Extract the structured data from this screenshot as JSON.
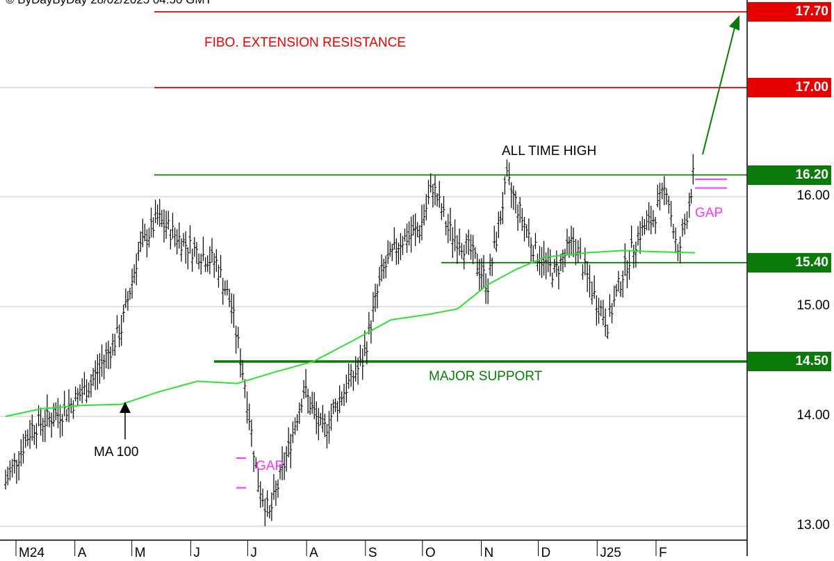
{
  "copyright": "© ByDayByDay 28/02/2025 04:50 GMT",
  "chart_data": {
    "type": "ohlc",
    "title": "",
    "xlabel": "",
    "ylabel": "",
    "ylim": [
      12.95,
      17.8
    ],
    "x_ticks": [
      "M24",
      "A",
      "M",
      "J",
      "J",
      "A",
      "S",
      "O",
      "N",
      "D",
      "J25",
      "F"
    ],
    "y_ticks": [
      "13.00",
      "14.00",
      "15.00",
      "16.00"
    ],
    "price_levels": [
      {
        "value": 17.7,
        "label": "17.70",
        "color": "#e60000"
      },
      {
        "value": 17.0,
        "label": "17.00",
        "color": "#e60000"
      },
      {
        "value": 16.2,
        "label": "16.20",
        "color": "#0a7a0a"
      },
      {
        "value": 15.4,
        "label": "15.40",
        "color": "#0a7a0a"
      },
      {
        "value": 14.5,
        "label": "14.50",
        "color": "#0a7a0a"
      }
    ],
    "series": [
      {
        "name": "MA 100",
        "color": "#33dd33",
        "points": [
          {
            "x": "2024-03-01",
            "y": 14.0
          },
          {
            "x": "2024-03-20",
            "y": 14.07
          },
          {
            "x": "2024-04-10",
            "y": 14.1
          },
          {
            "x": "2024-05-01",
            "y": 14.11
          },
          {
            "x": "2024-05-20",
            "y": 14.22
          },
          {
            "x": "2024-06-10",
            "y": 14.32
          },
          {
            "x": "2024-07-01",
            "y": 14.3
          },
          {
            "x": "2024-07-20",
            "y": 14.4
          },
          {
            "x": "2024-08-10",
            "y": 14.5
          },
          {
            "x": "2024-09-01",
            "y": 14.7
          },
          {
            "x": "2024-09-20",
            "y": 14.88
          },
          {
            "x": "2024-10-10",
            "y": 14.93
          },
          {
            "x": "2024-10-25",
            "y": 14.98
          },
          {
            "x": "2024-11-10",
            "y": 15.2
          },
          {
            "x": "2024-11-25",
            "y": 15.34
          },
          {
            "x": "2024-12-10",
            "y": 15.45
          },
          {
            "x": "2025-01-01",
            "y": 15.49
          },
          {
            "x": "2025-01-20",
            "y": 15.51
          },
          {
            "x": "2025-02-05",
            "y": 15.5
          },
          {
            "x": "2025-02-27",
            "y": 15.49
          }
        ]
      },
      {
        "name": "Price",
        "color": "#000000",
        "points": [
          {
            "x": "2024-03-01",
            "y": 13.4
          },
          {
            "x": "2024-03-15",
            "y": 13.9
          },
          {
            "x": "2024-04-01",
            "y": 14.05
          },
          {
            "x": "2024-04-15",
            "y": 14.3
          },
          {
            "x": "2024-05-01",
            "y": 14.8
          },
          {
            "x": "2024-05-10",
            "y": 15.5
          },
          {
            "x": "2024-05-20",
            "y": 15.8
          },
          {
            "x": "2024-06-05",
            "y": 15.55
          },
          {
            "x": "2024-06-20",
            "y": 15.4
          },
          {
            "x": "2024-06-28",
            "y": 15.0
          },
          {
            "x": "2024-07-05",
            "y": 14.3
          },
          {
            "x": "2024-07-12",
            "y": 13.4
          },
          {
            "x": "2024-07-18",
            "y": 13.1
          },
          {
            "x": "2024-07-28",
            "y": 13.7
          },
          {
            "x": "2024-08-05",
            "y": 14.25
          },
          {
            "x": "2024-08-15",
            "y": 13.85
          },
          {
            "x": "2024-08-25",
            "y": 14.2
          },
          {
            "x": "2024-09-05",
            "y": 14.5
          },
          {
            "x": "2024-09-15",
            "y": 15.3
          },
          {
            "x": "2024-09-25",
            "y": 15.6
          },
          {
            "x": "2024-10-05",
            "y": 15.7
          },
          {
            "x": "2024-10-12",
            "y": 16.1
          },
          {
            "x": "2024-10-20",
            "y": 15.7
          },
          {
            "x": "2024-11-01",
            "y": 15.5
          },
          {
            "x": "2024-11-10",
            "y": 15.2
          },
          {
            "x": "2024-11-20",
            "y": 16.15
          },
          {
            "x": "2024-11-28",
            "y": 15.8
          },
          {
            "x": "2024-12-05",
            "y": 15.5
          },
          {
            "x": "2024-12-15",
            "y": 15.3
          },
          {
            "x": "2024-12-25",
            "y": 15.6
          },
          {
            "x": "2025-01-05",
            "y": 15.1
          },
          {
            "x": "2025-01-12",
            "y": 14.85
          },
          {
            "x": "2025-01-20",
            "y": 15.3
          },
          {
            "x": "2025-01-28",
            "y": 15.65
          },
          {
            "x": "2025-02-05",
            "y": 15.8
          },
          {
            "x": "2025-02-12",
            "y": 16.1
          },
          {
            "x": "2025-02-18",
            "y": 15.45
          },
          {
            "x": "2025-02-24",
            "y": 15.95
          },
          {
            "x": "2025-02-27",
            "y": 16.3
          }
        ]
      }
    ],
    "annotations": {
      "fibo": "FIBO. EXTENSION RESISTANCE",
      "ath": "ALL TIME HIGH",
      "support": "MAJOR SUPPORT",
      "ma": "MA 100",
      "gap1": "GAP",
      "gap2": "GAP"
    },
    "colors": {
      "red": "#e60000",
      "green": "#0a7a0a",
      "ma": "#33dd33",
      "gap": "#ff33ff",
      "grid": "#d9d9d9"
    },
    "grid": true
  }
}
